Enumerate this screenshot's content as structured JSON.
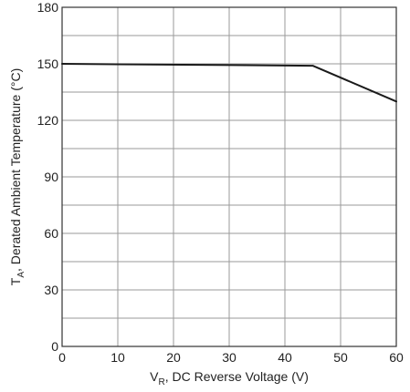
{
  "chart_data": {
    "type": "line",
    "title": "",
    "xlabel": {
      "main": "V",
      "subscript": "R",
      "rest": ", DC Reverse Voltage (V)"
    },
    "ylabel": {
      "main": "T",
      "subscript": "A",
      "rest": ", Derated Ambient Temperature (°C)"
    },
    "xlim": [
      0,
      60
    ],
    "ylim": [
      0,
      180
    ],
    "x_ticks": [
      0,
      10,
      20,
      30,
      40,
      50,
      60
    ],
    "x_tick_labels": [
      "0",
      "10",
      "20",
      "30",
      "40",
      "50",
      "60"
    ],
    "y_ticks": [
      0,
      30,
      60,
      90,
      120,
      150,
      180
    ],
    "y_tick_labels": [
      "0",
      "30",
      "60",
      "90",
      "120",
      "150",
      "180"
    ],
    "x_grid_step": 10,
    "y_grid_step": 15,
    "grid": true,
    "series": [
      {
        "x": [
          0,
          45,
          60
        ],
        "values": [
          150,
          149,
          130
        ]
      }
    ],
    "colors": {
      "line": "#1a1a1a",
      "grid": "#9a9a9a",
      "frame": "#333333",
      "text": "#222222"
    }
  }
}
